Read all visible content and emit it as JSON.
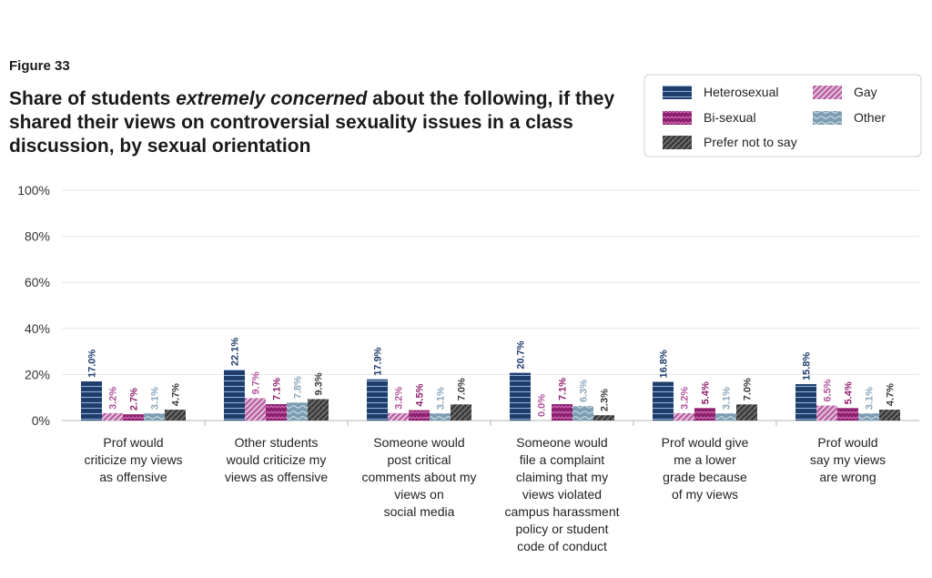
{
  "figure_label": "Figure 33",
  "title": {
    "part1": "Share of students ",
    "emphasis": "extremely concerned",
    "part2": " about the following, if they shared their views on controversial sexuality issues in a class discussion, by sexual orientation"
  },
  "chart_data": {
    "type": "bar",
    "categories": [
      [
        "Prof would",
        "criticize my views",
        "as offensive"
      ],
      [
        "Other students",
        "would criticize my",
        "views as offensive"
      ],
      [
        "Someone would",
        "post critical",
        "comments about my",
        "views on",
        "social media"
      ],
      [
        "Someone would",
        "file a complaint",
        "claiming that my",
        "views violated",
        "campus harassment",
        "policy or student",
        "code of conduct"
      ],
      [
        "Prof would give",
        "me a lower",
        "grade because",
        "of my views"
      ],
      [
        "Prof would",
        "say my views",
        "are wrong"
      ]
    ],
    "series": [
      {
        "name": "Heterosexual",
        "color": "#1e3d6b",
        "pattern": "hlines",
        "values": [
          17.0,
          22.1,
          17.9,
          20.7,
          16.8,
          15.8
        ],
        "labels": [
          "17.0%",
          "22.1%",
          "17.9%",
          "20.7%",
          "16.8%",
          "15.8%"
        ]
      },
      {
        "name": "Gay",
        "color": "#b2569e",
        "pattern": "diag",
        "values": [
          3.2,
          9.7,
          3.2,
          0.0,
          3.2,
          6.5
        ],
        "labels": [
          "3.2%",
          "9.7%",
          "3.2%",
          "0.0%",
          "3.2%",
          "6.5%"
        ]
      },
      {
        "name": "Bi-sexual",
        "color": "#8e1f6e",
        "pattern": "zigzag",
        "values": [
          2.7,
          7.1,
          4.5,
          7.1,
          5.4,
          5.4
        ],
        "labels": [
          "2.7%",
          "7.1%",
          "4.5%",
          "7.1%",
          "5.4%",
          "5.4%"
        ]
      },
      {
        "name": "Other",
        "color": "#7d9db3",
        "pattern": "waves",
        "values": [
          3.1,
          7.8,
          3.1,
          6.3,
          3.1,
          3.1
        ],
        "labels": [
          "3.1%",
          "7.8%",
          "3.1%",
          "6.3%",
          "3.1%",
          "3.1%"
        ]
      },
      {
        "name": "Prefer not to say",
        "color": "#3a3a3a",
        "pattern": "crosshatch",
        "values": [
          4.7,
          9.3,
          7.0,
          2.3,
          7.0,
          4.7
        ],
        "labels": [
          "4.7%",
          "9.3%",
          "7.0%",
          "2.3%",
          "7.0%",
          "4.7%"
        ]
      }
    ],
    "ylim": [
      0,
      100
    ],
    "yticks": [
      0,
      20,
      40,
      60,
      80,
      100
    ],
    "ytick_labels": [
      "0%",
      "20%",
      "40%",
      "60%",
      "80%",
      "100%"
    ],
    "grid": true,
    "legend_position": "top-right"
  }
}
